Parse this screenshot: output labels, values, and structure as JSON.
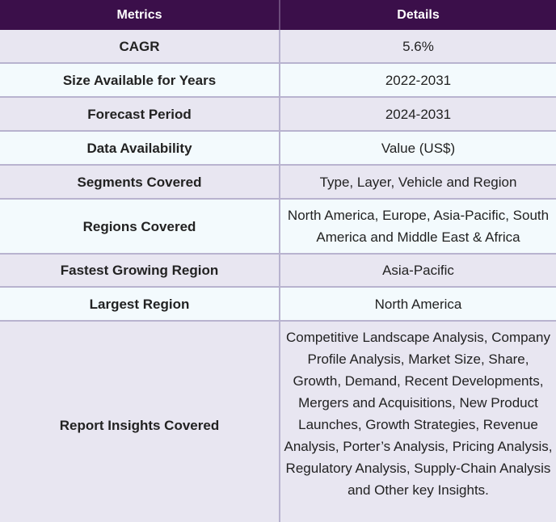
{
  "header": {
    "metrics": "Metrics",
    "details": "Details"
  },
  "rows": [
    {
      "metric": "CAGR",
      "details": "5.6%"
    },
    {
      "metric": "Size Available for Years",
      "details": "2022-2031"
    },
    {
      "metric": "Forecast Period",
      "details": "2024-2031"
    },
    {
      "metric": "Data Availability",
      "details": "Value (US$)"
    },
    {
      "metric": "Segments Covered",
      "details": "Type, Layer, Vehicle and Region"
    },
    {
      "metric": "Regions Covered",
      "details": "North America, Europe, Asia-Pacific, South America and Middle East & Africa"
    },
    {
      "metric": "Fastest Growing Region",
      "details": "Asia-Pacific"
    },
    {
      "metric": "Largest Region",
      "details": "North America"
    },
    {
      "metric": "Report Insights Covered",
      "details": "Competitive Landscape Analysis, Company Profile Analysis, Market Size, Share, Growth, Demand, Recent Developments, Mergers and Acquisitions, New Product Launches, Growth Strategies, Revenue Analysis, Porter’s Analysis, Pricing Analysis, Regulatory Analysis, Supply-Chain Analysis and Other key Insights."
    }
  ],
  "colors": {
    "header_bg": "#3b0f4a",
    "row_odd_bg": "#e8e6f1",
    "row_even_bg": "#f3fafd",
    "border": "#b8b3cf"
  }
}
